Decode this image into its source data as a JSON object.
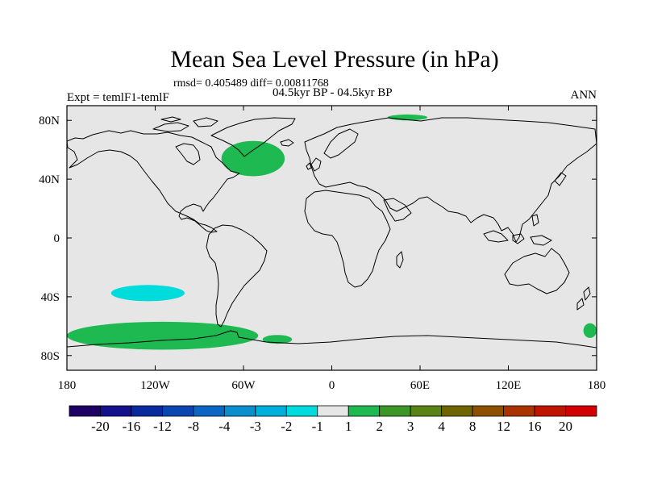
{
  "chart_data": {
    "type": "heatmap",
    "title": "Mean Sea Level Pressure (in hPa)",
    "stats_text": "rmsd= 0.405489 diff= 0.00811768",
    "period_text": "04.5kyr BP - 04.5kyr BP",
    "experiment_text": "Expt = temlF1-temlF",
    "season": "ANN",
    "x_ticks": [
      {
        "value": -180,
        "label": "180"
      },
      {
        "value": -120,
        "label": "120W"
      },
      {
        "value": -60,
        "label": "60W"
      },
      {
        "value": 0,
        "label": "0"
      },
      {
        "value": 60,
        "label": "60E"
      },
      {
        "value": 120,
        "label": "120E"
      },
      {
        "value": 180,
        "label": "180"
      }
    ],
    "y_ticks": [
      {
        "value": 80,
        "label": "80N"
      },
      {
        "value": 40,
        "label": "40N"
      },
      {
        "value": 0,
        "label": "0"
      },
      {
        "value": -40,
        "label": "40S"
      },
      {
        "value": -80,
        "label": "80S"
      }
    ],
    "xlim": [
      -180,
      180
    ],
    "ylim": [
      -90,
      90
    ],
    "background_color": "#e6e6e6",
    "colorbar": {
      "levels": [
        "-20",
        "-16",
        "-12",
        "-8",
        "-4",
        "-3",
        "-2",
        "-1",
        "1",
        "2",
        "3",
        "4",
        "8",
        "12",
        "16",
        "20"
      ],
      "colors": [
        "#1e0064",
        "#13128c",
        "#0a2b9e",
        "#0a45b0",
        "#0a66c2",
        "#0a8ecd",
        "#00b0dc",
        "#00dcdc",
        "#e6e6e6",
        "#1eb950",
        "#3c9628",
        "#5a8214",
        "#6e6400",
        "#8c5000",
        "#aa3200",
        "#be1400",
        "#d20000"
      ]
    },
    "anomaly_regions": [
      {
        "name": "north-atlantic",
        "color": "#1eb950",
        "lon": [
          -75,
          -32
        ],
        "lat": [
          42,
          66
        ],
        "label": "1 to 2 hPa"
      },
      {
        "name": "arctic-barents",
        "color": "#1eb950",
        "lon": [
          38,
          65
        ],
        "lat": [
          80,
          84
        ],
        "label": "1 to 2 hPa"
      },
      {
        "name": "south-pacific",
        "color": "#00dcdc",
        "lon": [
          -150,
          -100
        ],
        "lat": [
          -43,
          -32
        ],
        "label": "-2 to -1 hPa"
      },
      {
        "name": "southern-ocean-west",
        "color": "#1eb950",
        "lon": [
          -180,
          -50
        ],
        "lat": [
          -76,
          -57
        ],
        "label": "1 to 2 hPa"
      },
      {
        "name": "southern-ocean-south-atlantic",
        "color": "#1eb950",
        "lon": [
          -47,
          -27
        ],
        "lat": [
          -72,
          -66
        ],
        "label": "1 to 2 hPa"
      },
      {
        "name": "southern-ocean-east",
        "color": "#1eb950",
        "lon": [
          171,
          180
        ],
        "lat": [
          -68,
          -58
        ],
        "label": "1 to 2 hPa"
      }
    ]
  }
}
